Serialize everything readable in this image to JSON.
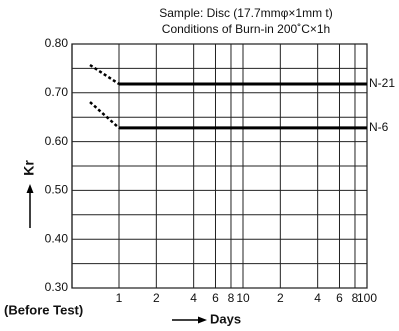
{
  "chart_data": {
    "type": "line",
    "title": "Sample: Disc (17.7mmφ×1mm t)",
    "subtitle": "Conditions of Burn-in 200˚C×1h",
    "x_label": "Days",
    "y_label": "Kr",
    "before_label": "(Before Test)",
    "x_scale": "log",
    "x": [
      1,
      100
    ],
    "xlim": [
      1,
      100
    ],
    "xticks": [
      1,
      2,
      4,
      6,
      8,
      10,
      {
        "value": 20,
        "label": "2"
      },
      {
        "value": 40,
        "label": "4"
      },
      {
        "value": 60,
        "label": "6"
      },
      {
        "value": 80,
        "label": "8"
      },
      100
    ],
    "ylim": [
      0.3,
      0.8
    ],
    "yticks": [
      {
        "value": 0.3,
        "label": "0.30"
      },
      {
        "value": 0.4,
        "label": "0.40"
      },
      {
        "value": 0.5,
        "label": "0.50"
      },
      {
        "value": 0.6,
        "label": "0.60"
      },
      {
        "value": 0.7,
        "label": "0.70"
      },
      {
        "value": 0.8,
        "label": "0.80"
      }
    ],
    "y_minor_ticks": [
      0.35,
      0.45,
      0.55,
      0.65,
      0.75
    ],
    "grid": true,
    "series": [
      {
        "name": "N-21",
        "color": "#000000",
        "before_value": 0.757,
        "values": [
          0.718,
          0.718
        ]
      },
      {
        "name": "N-6",
        "color": "#000000",
        "before_value": 0.681,
        "values": [
          0.628,
          0.628
        ]
      }
    ]
  }
}
